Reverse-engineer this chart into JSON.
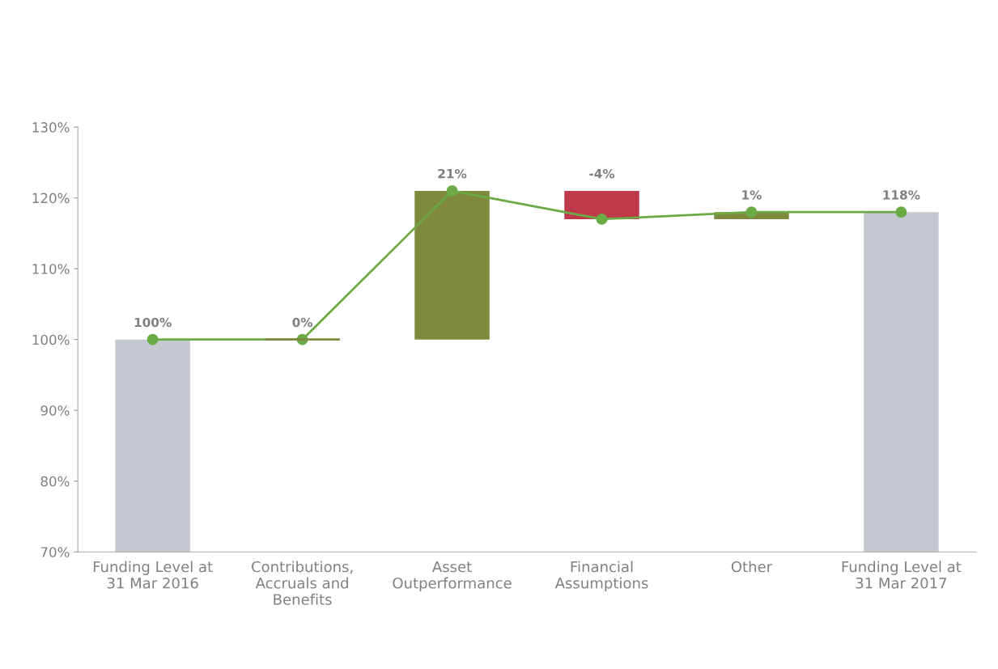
{
  "chart_data": {
    "type": "bar",
    "categories": [
      "Funding Level at\n31 Mar 2016",
      "Contributions,\nAccruals and\nBenefits",
      "Asset\nOutperformance",
      "Financial\nAssumptions",
      "Other",
      "Funding Level at\n31 Mar 2017"
    ],
    "series": [
      {
        "base": [
          0,
          100,
          100,
          121,
          117,
          0
        ],
        "values": [
          100,
          0,
          21,
          -4,
          1,
          118
        ],
        "colors": [
          "#c3c9cf",
          "#7f8a3e",
          "#7f8a3e",
          "#c0394a",
          "#7f8a3e",
          "#c3c9cf"
        ],
        "value_labels": [
          "100%",
          "0%",
          "21%",
          "-4%",
          "1%",
          "118%"
        ]
      },
      {
        "type": "line",
        "color": "#6aab45",
        "values": [
          100,
          100,
          121,
          117,
          118,
          118
        ],
        "marker": "circle",
        "line_style": "solid"
      }
    ],
    "ylim": [
      70,
      130
    ],
    "yticks": [
      {
        "value": 70,
        "label": "70%"
      },
      {
        "value": 80,
        "label": "80%"
      },
      {
        "value": 90,
        "label": "90%"
      },
      {
        "value": 100,
        "label": "100%"
      },
      {
        "value": 110,
        "label": "110%"
      },
      {
        "value": 120,
        "label": "120%"
      },
      {
        "value": 130,
        "label": "130%"
      }
    ],
    "grid": false
  }
}
